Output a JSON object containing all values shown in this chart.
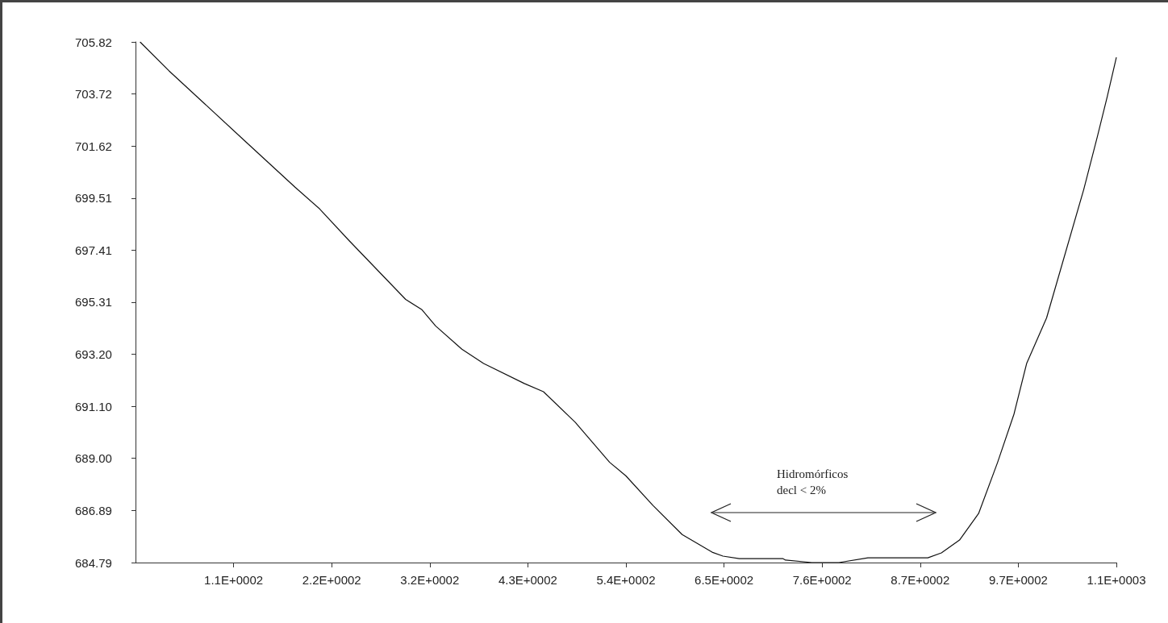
{
  "chart_data": {
    "type": "line",
    "x": [
      5,
      37,
      120,
      176,
      203,
      236,
      298,
      316,
      331,
      360,
      384,
      429,
      450,
      485,
      523,
      541,
      571,
      603,
      636,
      648,
      666,
      714,
      717,
      746,
      776,
      808,
      874,
      889,
      909,
      930,
      951,
      969,
      983,
      1005,
      1046,
      1061,
      1072,
      1082
    ],
    "series": [
      {
        "color": "#111111",
        "values": [
          705.82,
          704.65,
          701.84,
          699.95,
          699.08,
          697.78,
          695.42,
          695.0,
          694.35,
          693.41,
          692.83,
          692.02,
          691.69,
          690.46,
          688.84,
          688.29,
          687.09,
          685.92,
          685.21,
          685.05,
          684.95,
          684.95,
          684.89,
          684.79,
          684.79,
          684.98,
          684.98,
          685.18,
          685.7,
          686.77,
          688.84,
          690.78,
          692.83,
          694.67,
          699.86,
          701.99,
          703.62,
          705.2
        ]
      }
    ],
    "xlim": [
      0,
      1082
    ],
    "xticks": [
      {
        "value": 108.2,
        "label": "1.1E+0002"
      },
      {
        "value": 216.4,
        "label": "2.2E+0002"
      },
      {
        "value": 324.6,
        "label": "3.2E+0002"
      },
      {
        "value": 432.8,
        "label": "4.3E+0002"
      },
      {
        "value": 541,
        "label": "5.4E+0002"
      },
      {
        "value": 649.2,
        "label": "6.5E+0002"
      },
      {
        "value": 757.4,
        "label": "7.6E+0002"
      },
      {
        "value": 865.6,
        "label": "8.7E+0002"
      },
      {
        "value": 973.8,
        "label": "9.7E+0002"
      },
      {
        "value": 1082,
        "label": "1.1E+0003"
      }
    ],
    "ylim": [
      684.79,
      705.82
    ],
    "yticks": [
      684.79,
      686.89,
      {
        "value": 689,
        "label": "689.00"
      },
      {
        "value": 691.1,
        "label": "691.10"
      },
      {
        "value": 693.2,
        "label": "693.20"
      },
      695.31,
      697.41,
      699.51,
      701.62,
      703.72,
      705.82
    ],
    "annotations": [
      "Hidromórficos\ndecl < 2%"
    ]
  }
}
